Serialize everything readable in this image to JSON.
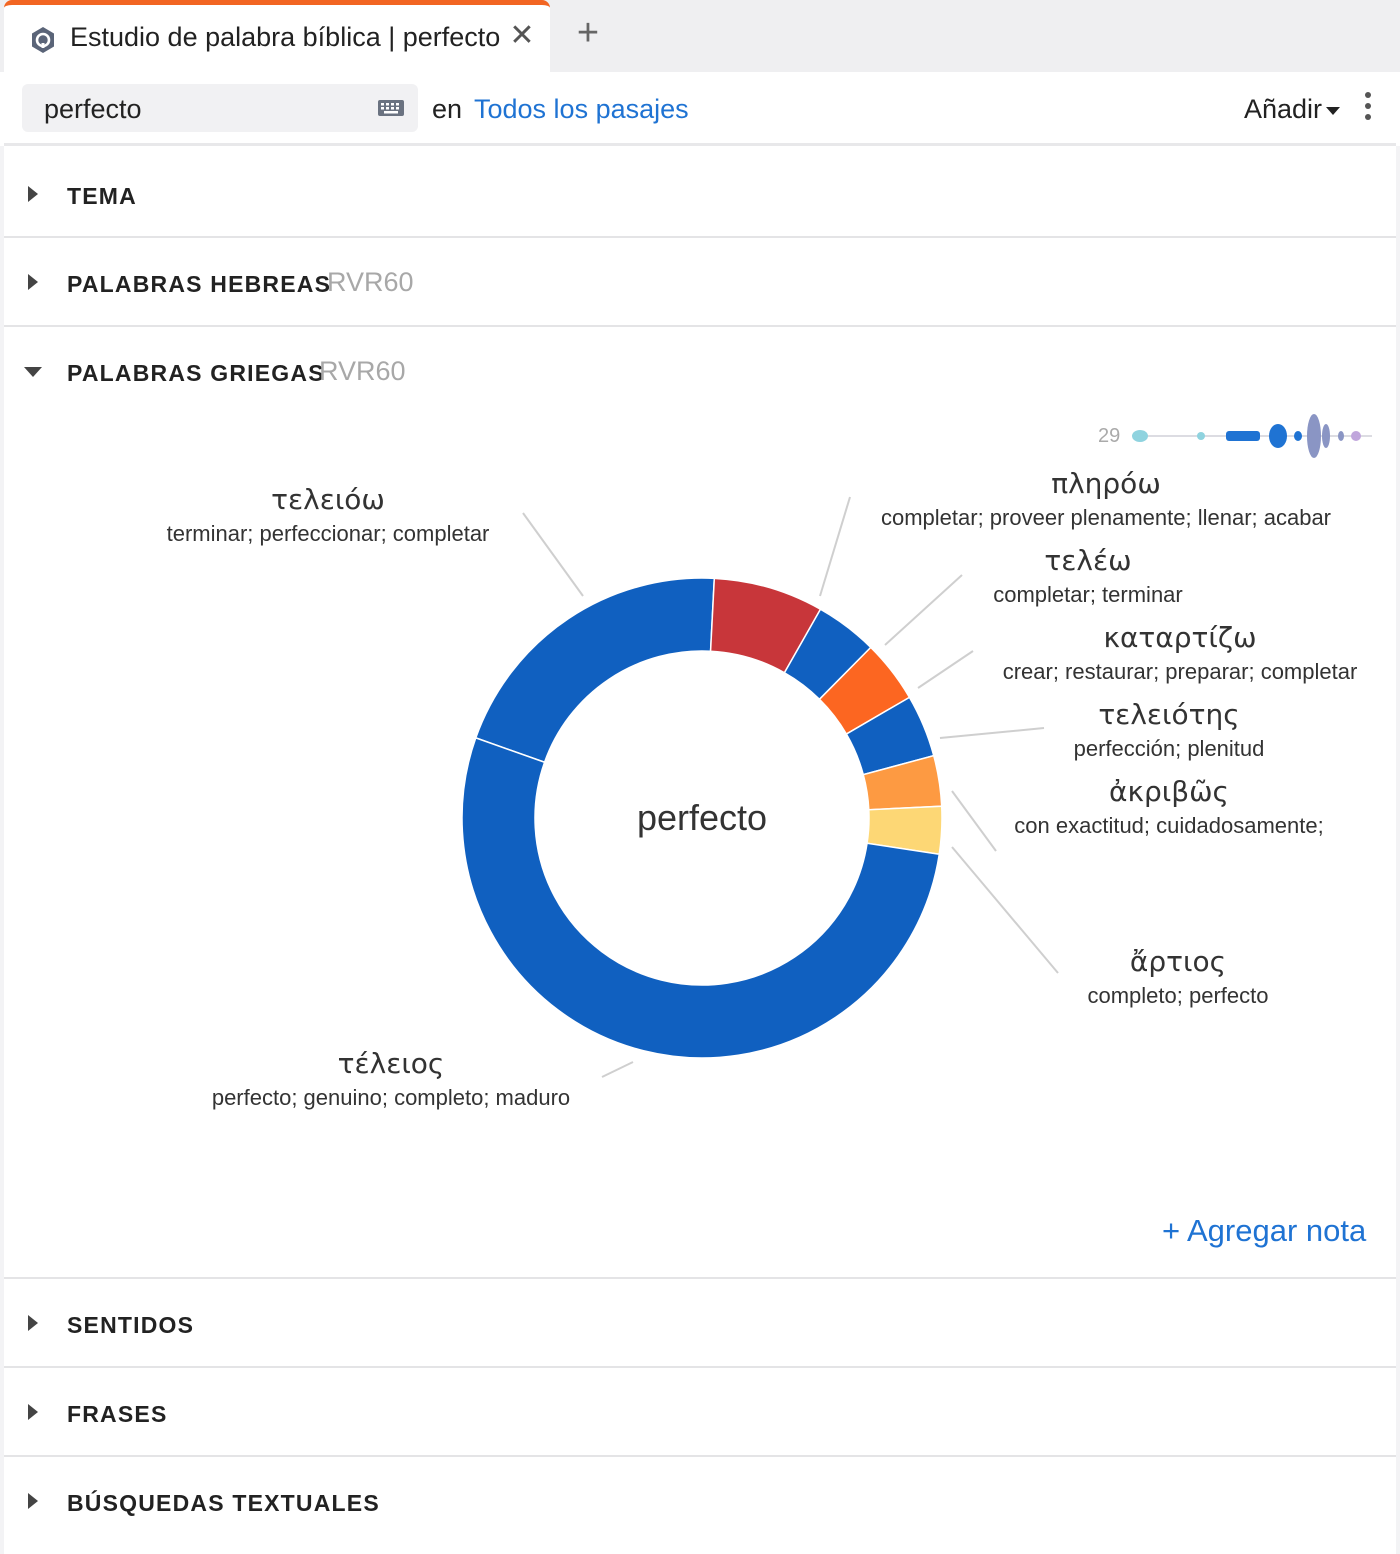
{
  "tab": {
    "title": "Estudio de palabra bíblica | perfecto",
    "close_glyph": "✕",
    "add_glyph": "+",
    "icon": "logos-app-icon"
  },
  "toolbar": {
    "search_value": "perfecto",
    "in_label": "en",
    "scope_link": "Todos los pasajes",
    "add_label": "Añadir"
  },
  "sections": {
    "tema": {
      "title": "TEMA"
    },
    "hebreas": {
      "title": "PALABRAS HEBREAS",
      "version": "RVR60"
    },
    "griegas": {
      "title": "PALABRAS GRIEGAS",
      "version": "RVR60"
    },
    "sentidos": {
      "title": "SENTIDOS"
    },
    "frases": {
      "title": "FRASES"
    },
    "busquedas": {
      "title": "BÚSQUEDAS TEXTUALES"
    }
  },
  "chart": {
    "center_label": "perfecto",
    "count": "29",
    "add_note": "+ Agregar nota"
  },
  "chart_data": {
    "type": "pie",
    "series": [
      {
        "lemma": "τέλειος",
        "gloss": "perfecto; genuino; completo; maduro",
        "fraction": 0.53,
        "color": "#1060c0"
      },
      {
        "lemma": "τελειόω",
        "gloss": "terminar; perfeccionar; completar",
        "fraction": 0.204,
        "color": "#1060c0"
      },
      {
        "lemma": "πληρόω",
        "gloss": "completar; proveer plenamente; llenar; acabar",
        "fraction": 0.074,
        "color": "#c8363a"
      },
      {
        "lemma": "τελέω",
        "gloss": "completar; terminar",
        "fraction": 0.042,
        "color": "#1060c0"
      },
      {
        "lemma": "καταρτίζω",
        "gloss": "crear; restaurar; preparar; completar",
        "fraction": 0.042,
        "color": "#fc6621"
      },
      {
        "lemma": "τελειότης",
        "gloss": "perfección; plenitud",
        "fraction": 0.042,
        "color": "#1060c0"
      },
      {
        "lemma": "ἀκριβῶς",
        "gloss": "con exactitud; cuidadosamente;",
        "fraction": 0.034,
        "color": "#fd9a42"
      },
      {
        "lemma": "ἄρτιος",
        "gloss": "completo; perfecto",
        "fraction": 0.032,
        "color": "#fdd775"
      }
    ]
  }
}
